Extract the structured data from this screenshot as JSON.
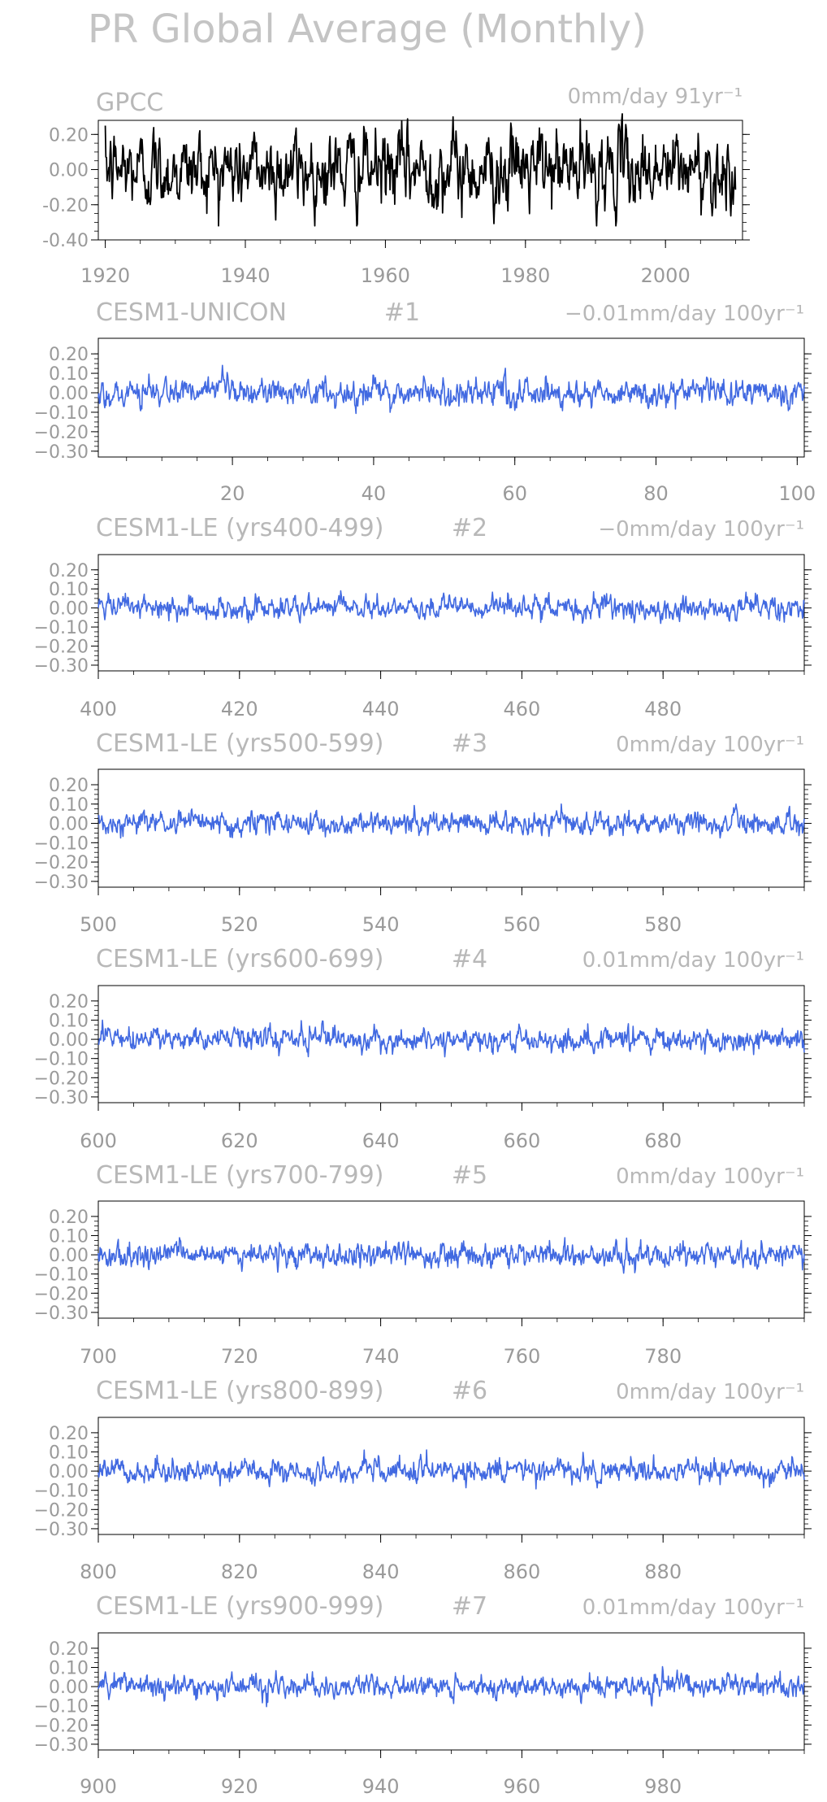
{
  "title": "PR Global Average (Monthly)",
  "chart_data": [
    {
      "type": "line",
      "title": "GPCC",
      "trend_label": "0mm/day 91yr⁻¹",
      "series": [
        {
          "color": "#000000",
          "x_start": 1920,
          "x_end": 2010,
          "mean": 0.0,
          "amplitude": 0.09,
          "spread": 0.32
        }
      ],
      "xlim": [
        1919,
        2011
      ],
      "ylim": [
        -0.4,
        0.28
      ],
      "xticks": [
        "1920",
        "1940",
        "1960",
        "1980",
        "2000"
      ],
      "xtick_values": [
        1920,
        1940,
        1960,
        1980,
        2000
      ],
      "yticks": [
        "0.20",
        "0.00",
        "-0.20",
        "-0.40"
      ],
      "ytick_values": [
        0.2,
        0.0,
        -0.2,
        -0.4
      ]
    },
    {
      "type": "line",
      "title": "CESM1-UNICON",
      "run_label": "#1",
      "trend_label": "−0.01mm/day 100yr⁻¹",
      "series": [
        {
          "color": "#4169e1",
          "x_start": 1,
          "x_end": 101,
          "mean": 0.0,
          "amplitude": 0.03,
          "spread": 0.15
        }
      ],
      "xlim": [
        1,
        101
      ],
      "ylim": [
        -0.33,
        0.28
      ],
      "xticks": [
        "20",
        "40",
        "60",
        "80",
        "100"
      ],
      "xtick_values": [
        20,
        40,
        60,
        80,
        100
      ],
      "yticks": [
        "0.20",
        "0.10",
        "0.00",
        "−0.10",
        "−0.20",
        "−0.30"
      ],
      "ytick_values": [
        0.2,
        0.1,
        0.0,
        -0.1,
        -0.2,
        -0.3
      ]
    },
    {
      "type": "line",
      "title": "CESM1-LE (yrs400-499)",
      "run_label": "#2",
      "trend_label": "−0mm/day 100yr⁻¹",
      "series": [
        {
          "color": "#4169e1",
          "x_start": 400,
          "x_end": 500,
          "mean": 0.0,
          "amplitude": 0.025,
          "spread": 0.09
        }
      ],
      "xlim": [
        400,
        500
      ],
      "ylim": [
        -0.33,
        0.28
      ],
      "xticks": [
        "400",
        "420",
        "440",
        "460",
        "480"
      ],
      "xtick_values": [
        400,
        420,
        440,
        460,
        480
      ],
      "yticks": [
        "0.20",
        "0.10",
        "0.00",
        "−0.10",
        "−0.20",
        "−0.30"
      ],
      "ytick_values": [
        0.2,
        0.1,
        0.0,
        -0.1,
        -0.2,
        -0.3
      ]
    },
    {
      "type": "line",
      "title": "CESM1-LE (yrs500-599)",
      "run_label": "#3",
      "trend_label": "0mm/day 100yr⁻¹",
      "series": [
        {
          "color": "#4169e1",
          "x_start": 500,
          "x_end": 600,
          "mean": 0.0,
          "amplitude": 0.025,
          "spread": 0.1
        }
      ],
      "xlim": [
        500,
        600
      ],
      "ylim": [
        -0.33,
        0.28
      ],
      "xticks": [
        "500",
        "520",
        "540",
        "560",
        "580"
      ],
      "xtick_values": [
        500,
        520,
        540,
        560,
        580
      ],
      "yticks": [
        "0.20",
        "0.10",
        "0.00",
        "−0.10",
        "−0.20",
        "−0.30"
      ],
      "ytick_values": [
        0.2,
        0.1,
        0.0,
        -0.1,
        -0.2,
        -0.3
      ]
    },
    {
      "type": "line",
      "title": "CESM1-LE (yrs600-699)",
      "run_label": "#4",
      "trend_label": "0.01mm/day 100yr⁻¹",
      "series": [
        {
          "color": "#4169e1",
          "x_start": 600,
          "x_end": 700,
          "mean": 0.0,
          "amplitude": 0.025,
          "spread": 0.1
        }
      ],
      "xlim": [
        600,
        700
      ],
      "ylim": [
        -0.33,
        0.28
      ],
      "xticks": [
        "600",
        "620",
        "640",
        "660",
        "680"
      ],
      "xtick_values": [
        600,
        620,
        640,
        660,
        680
      ],
      "yticks": [
        "0.20",
        "0.10",
        "0.00",
        "−0.10",
        "−0.20",
        "−0.30"
      ],
      "ytick_values": [
        0.2,
        0.1,
        0.0,
        -0.1,
        -0.2,
        -0.3
      ]
    },
    {
      "type": "line",
      "title": "CESM1-LE (yrs700-799)",
      "run_label": "#5",
      "trend_label": "0mm/day 100yr⁻¹",
      "series": [
        {
          "color": "#4169e1",
          "x_start": 700,
          "x_end": 800,
          "mean": 0.0,
          "amplitude": 0.027,
          "spread": 0.1
        }
      ],
      "xlim": [
        700,
        800
      ],
      "ylim": [
        -0.33,
        0.28
      ],
      "xticks": [
        "700",
        "720",
        "740",
        "760",
        "780"
      ],
      "xtick_values": [
        700,
        720,
        740,
        760,
        780
      ],
      "yticks": [
        "0.20",
        "0.10",
        "0.00",
        "−0.10",
        "−0.20",
        "−0.30"
      ],
      "ytick_values": [
        0.2,
        0.1,
        0.0,
        -0.1,
        -0.2,
        -0.3
      ]
    },
    {
      "type": "line",
      "title": "CESM1-LE (yrs800-899)",
      "run_label": "#6",
      "trend_label": "0mm/day 100yr⁻¹",
      "series": [
        {
          "color": "#4169e1",
          "x_start": 800,
          "x_end": 900,
          "mean": 0.0,
          "amplitude": 0.025,
          "spread": 0.15
        }
      ],
      "xlim": [
        800,
        900
      ],
      "ylim": [
        -0.33,
        0.28
      ],
      "xticks": [
        "800",
        "820",
        "840",
        "860",
        "880"
      ],
      "xtick_values": [
        800,
        820,
        840,
        860,
        880
      ],
      "yticks": [
        "0.20",
        "0.10",
        "0.00",
        "−0.10",
        "−0.20",
        "−0.30"
      ],
      "ytick_values": [
        0.2,
        0.1,
        0.0,
        -0.1,
        -0.2,
        -0.3
      ]
    },
    {
      "type": "line",
      "title": "CESM1-LE (yrs900-999)",
      "run_label": "#7",
      "trend_label": "0.01mm/day 100yr⁻¹",
      "series": [
        {
          "color": "#4169e1",
          "x_start": 900,
          "x_end": 1000,
          "mean": 0.0,
          "amplitude": 0.025,
          "spread": 0.11
        }
      ],
      "xlim": [
        900,
        1000
      ],
      "ylim": [
        -0.33,
        0.28
      ],
      "xticks": [
        "900",
        "920",
        "940",
        "960",
        "980"
      ],
      "xtick_values": [
        900,
        920,
        940,
        960,
        980
      ],
      "yticks": [
        "0.20",
        "0.10",
        "0.00",
        "−0.10",
        "−0.20",
        "−0.30"
      ],
      "ytick_values": [
        0.2,
        0.1,
        0.0,
        -0.1,
        -0.2,
        -0.3
      ]
    }
  ]
}
